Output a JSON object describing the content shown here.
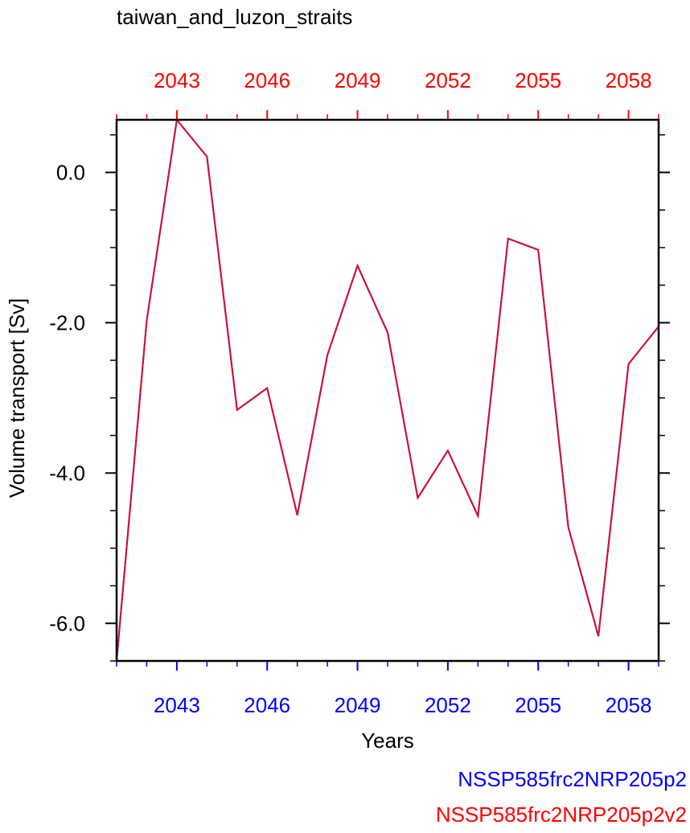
{
  "chart_data": {
    "type": "line",
    "title": "taiwan_and_luzon_straits",
    "xlabel": "Years",
    "ylabel": "Volume transport [Sv]",
    "xlim": [
      2041,
      2059
    ],
    "ylim": [
      -6.5,
      0.7
    ],
    "x_ticks": [
      "2043",
      "2046",
      "2049",
      "2052",
      "2055",
      "2058"
    ],
    "y_ticks": [
      "0.0",
      "-2.0",
      "-4.0",
      "-6.0"
    ],
    "x_tick_values": [
      2043,
      2046,
      2049,
      2052,
      2055,
      2058
    ],
    "y_tick_values": [
      0,
      -2,
      -4,
      -6
    ],
    "x": [
      2041,
      2042,
      2043,
      2044,
      2045,
      2046,
      2047,
      2048,
      2049,
      2050,
      2051,
      2052,
      2053,
      2054,
      2055,
      2056,
      2057,
      2058,
      2059
    ],
    "series": [
      {
        "name": "NSSP585frc2NRP205p2",
        "color": "#0000ff",
        "values": [
          -6.5,
          -1.97,
          0.7,
          0.21,
          -3.16,
          -2.87,
          -4.56,
          -2.43,
          -1.24,
          -2.13,
          -4.33,
          -3.7,
          -4.57,
          -0.88,
          -1.03,
          -4.72,
          -6.17,
          -2.55,
          -2.05
        ]
      },
      {
        "name": "NSSP585frc2NRP205p2v2",
        "color": "#ff0000",
        "values": [
          -6.5,
          -1.97,
          0.7,
          0.21,
          -3.16,
          -2.87,
          -4.56,
          -2.43,
          -1.24,
          -2.13,
          -4.33,
          -3.7,
          -4.57,
          -0.88,
          -1.03,
          -4.72,
          -6.17,
          -2.55,
          -2.05
        ]
      }
    ],
    "line_color": "#c8103c",
    "bottom_axis_color": "#0000ff",
    "top_axis_color": "#ff0000",
    "grid": false,
    "legend_position": "bottom-right"
  }
}
